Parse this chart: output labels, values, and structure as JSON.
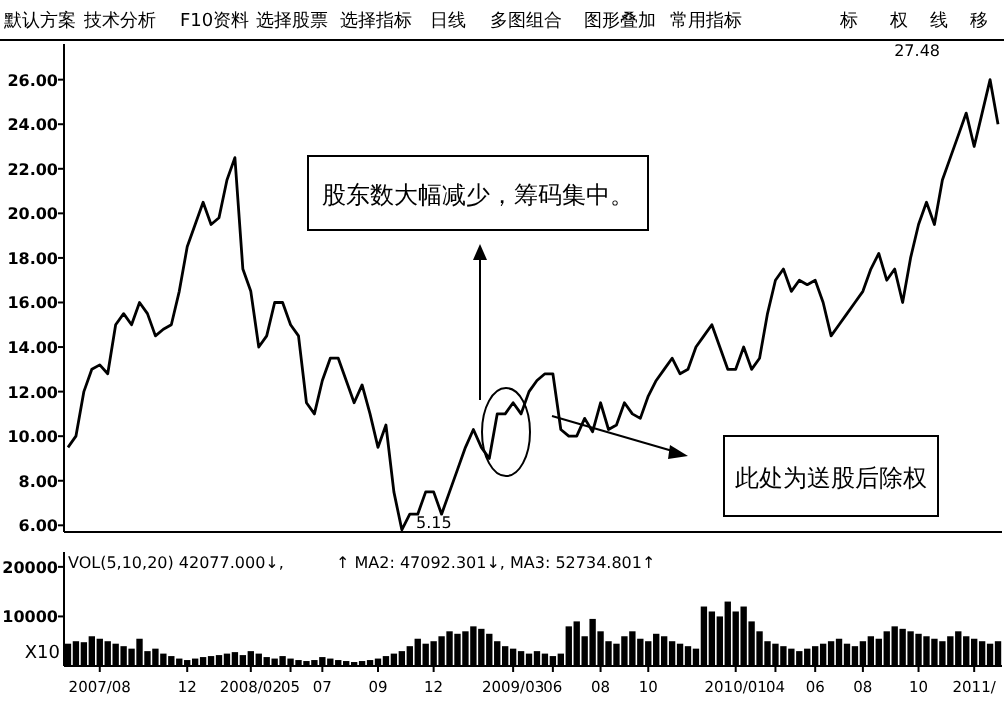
{
  "chart_data": [
    {
      "type": "other",
      "annotations": [
        "默认方案",
        "技术分析",
        "F10资料",
        "选择股票",
        "选择指标",
        "日线",
        "多图组合",
        "图形叠加",
        "常用指标",
        "标",
        "权",
        "线",
        "移"
      ]
    },
    {
      "type": "line",
      "color": "#000000",
      "tick_labels": "y",
      "ylim": [
        5.7,
        27.6
      ],
      "categories": [
        null,
        null,
        null,
        null,
        null,
        null,
        null,
        null,
        null,
        null,
        null,
        null,
        null,
        null,
        null,
        null,
        null,
        null,
        null,
        null,
        null,
        null,
        null,
        null,
        null,
        null,
        null,
        null,
        null,
        null,
        null,
        null,
        null,
        null,
        null,
        null,
        null,
        null,
        null,
        null,
        null,
        null,
        null,
        null,
        null,
        null,
        null,
        null,
        null,
        null,
        null,
        null,
        null,
        null,
        null,
        null,
        null,
        null,
        null,
        null,
        null,
        null,
        null,
        null,
        null,
        null,
        null,
        null,
        null,
        null,
        null,
        null,
        null,
        null,
        null,
        null,
        null,
        null,
        null,
        null,
        null,
        null,
        null,
        null,
        null,
        null,
        null,
        null,
        null,
        null,
        null,
        null,
        null,
        null,
        null,
        null,
        null,
        null,
        null,
        null,
        null,
        null,
        null,
        null,
        null,
        null,
        null,
        null,
        null,
        null,
        null,
        null,
        null,
        null,
        null,
        null,
        null,
        null
      ],
      "yticks": [
        {
          "value": 6,
          "label": "6.00"
        },
        {
          "value": 8,
          "label": "8.00"
        },
        {
          "value": 10,
          "label": "10.00"
        },
        {
          "value": 12,
          "label": "12.00"
        },
        {
          "value": 14,
          "label": "14.00"
        },
        {
          "value": 16,
          "label": "16.00"
        },
        {
          "value": 18,
          "label": "18.00"
        },
        {
          "value": 20,
          "label": "20.00"
        },
        {
          "value": 22,
          "label": "22.00"
        },
        {
          "value": 24,
          "label": "24.00"
        },
        {
          "value": 26,
          "label": "26.00"
        }
      ],
      "values": [
        9.5,
        10.0,
        12.0,
        13.0,
        13.2,
        12.8,
        15.0,
        15.5,
        15.0,
        16.0,
        15.5,
        14.5,
        14.8,
        15.0,
        16.5,
        18.5,
        19.5,
        20.5,
        19.5,
        19.8,
        21.5,
        22.5,
        17.5,
        16.5,
        14.0,
        14.5,
        16.0,
        16.0,
        15.0,
        14.5,
        11.5,
        11.0,
        12.5,
        13.5,
        13.5,
        12.5,
        11.5,
        12.3,
        11.0,
        9.5,
        10.5,
        7.5,
        5.8,
        6.5,
        6.5,
        7.5,
        7.5,
        6.5,
        7.5,
        8.5,
        9.5,
        10.3,
        9.5,
        9.0,
        11.0,
        11.0,
        11.5,
        11.0,
        12.0,
        12.5,
        12.8,
        12.8,
        10.3,
        10.0,
        10.0,
        10.8,
        10.2,
        11.5,
        10.3,
        10.5,
        11.5,
        11.0,
        10.8,
        11.8,
        12.5,
        13.0,
        13.5,
        12.8,
        13.0,
        14.0,
        14.5,
        15.0,
        14.0,
        13.0,
        13.0,
        14.0,
        13.0,
        13.5,
        15.5,
        17.0,
        17.5,
        16.5,
        17.0,
        16.8,
        17.0,
        16.0,
        14.5,
        15.0,
        15.5,
        16.0,
        16.5,
        17.5,
        18.2,
        17.0,
        17.5,
        16.0,
        18.0,
        19.5,
        20.5,
        19.5,
        21.5,
        22.5,
        23.5,
        24.5,
        23.0,
        24.5,
        26.0,
        24.0
      ],
      "annotations": [
        "5.15",
        "27.48",
        "股东数大幅减少，筹码集中。",
        "此处为送股后除权"
      ]
    },
    {
      "type": "bar",
      "color": "#000000",
      "ylim": [
        0,
        23000
      ],
      "yticks": [
        10000,
        20000
      ],
      "categories": [
        null,
        null,
        null,
        null,
        "2007/08",
        null,
        null,
        null,
        null,
        null,
        null,
        null,
        null,
        null,
        null,
        "12",
        null,
        null,
        null,
        null,
        null,
        null,
        null,
        "2008/02",
        null,
        null,
        null,
        null,
        "05",
        null,
        null,
        null,
        "07",
        null,
        null,
        null,
        null,
        null,
        null,
        "09",
        null,
        null,
        null,
        null,
        null,
        null,
        "12",
        null,
        null,
        null,
        null,
        null,
        null,
        null,
        null,
        null,
        "2009/03",
        null,
        null,
        null,
        null,
        "06",
        null,
        null,
        null,
        null,
        null,
        "08",
        null,
        null,
        null,
        null,
        null,
        "10",
        null,
        null,
        null,
        null,
        null,
        null,
        null,
        null,
        null,
        null,
        "2010/01",
        null,
        null,
        null,
        null,
        "04",
        null,
        null,
        null,
        null,
        "06",
        null,
        null,
        null,
        null,
        null,
        "08",
        null,
        null,
        null,
        null,
        null,
        null,
        "10",
        null,
        null,
        null,
        null,
        null,
        null,
        "2011/",
        null,
        null,
        null
      ],
      "values": [
        4500,
        5000,
        4800,
        6000,
        5500,
        5000,
        4500,
        4000,
        3500,
        5500,
        3000,
        3500,
        2500,
        2000,
        1500,
        1200,
        1500,
        1800,
        2000,
        2200,
        2500,
        2800,
        2200,
        3000,
        2500,
        1800,
        1500,
        2000,
        1500,
        1200,
        1000,
        1200,
        1800,
        1500,
        1200,
        1000,
        800,
        1000,
        1200,
        1500,
        2000,
        2500,
        3000,
        4000,
        5500,
        4500,
        5000,
        6000,
        7000,
        6500,
        7000,
        8000,
        7500,
        6500,
        5000,
        4000,
        3500,
        3000,
        2500,
        3000,
        2500,
        2000,
        2500,
        8000,
        9000,
        6000,
        9500,
        7000,
        5000,
        4500,
        6000,
        7000,
        5500,
        5000,
        6500,
        6000,
        5000,
        4500,
        4000,
        3500,
        12000,
        11000,
        10000,
        13000,
        11000,
        12000,
        9000,
        7000,
        5000,
        4500,
        4000,
        3500,
        3000,
        3500,
        4000,
        4500,
        5000,
        5500,
        4500,
        4000,
        5000,
        6000,
        5500,
        7000,
        8000,
        7500,
        7000,
        6500,
        6000,
        5500,
        5000,
        6000,
        7000,
        6000,
        5500,
        5000,
        4500,
        5000
      ],
      "annotations": [
        "VOL(5,10,20) 42077.000↓,",
        "↑ MA2: 47092.301↓, MA3: 52734.801↑",
        "X10"
      ]
    }
  ]
}
